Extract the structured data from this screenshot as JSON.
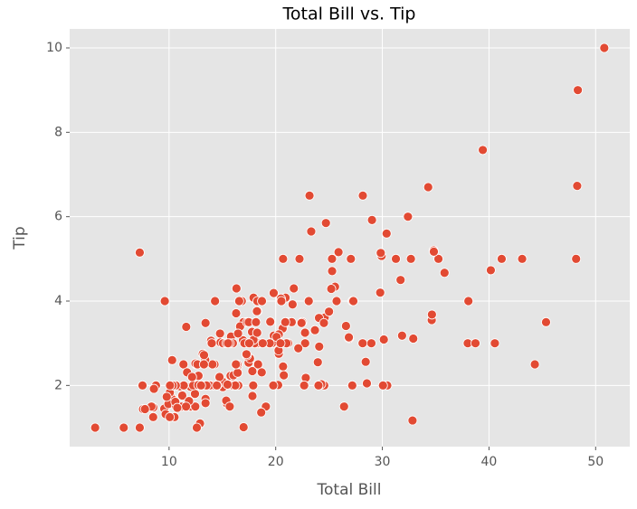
{
  "chart_data": {
    "type": "scatter",
    "title": "Total Bill vs. Tip",
    "x_label": "Total Bill",
    "y_label": "Tip",
    "color": "#E24A33",
    "grid": true,
    "xlim": [
      0.68,
      53.2
    ],
    "ylim": [
      0.55,
      10.45
    ],
    "xticks": [
      10,
      20,
      30,
      40,
      50
    ],
    "yticks": [
      2,
      4,
      6,
      8,
      10
    ],
    "x": [
      16.99,
      10.34,
      21.01,
      23.68,
      24.59,
      25.29,
      8.77,
      26.88,
      15.04,
      14.78,
      10.27,
      35.26,
      15.42,
      18.43,
      14.83,
      21.58,
      10.33,
      16.29,
      16.97,
      20.65,
      17.92,
      20.29,
      15.77,
      39.42,
      19.82,
      17.81,
      13.37,
      12.69,
      21.7,
      19.65,
      9.55,
      18.35,
      15.06,
      20.69,
      17.78,
      24.06,
      16.31,
      16.93,
      18.69,
      31.27,
      16.04,
      17.46,
      13.94,
      9.68,
      30.4,
      18.29,
      22.23,
      32.4,
      28.55,
      18.04,
      12.54,
      10.29,
      34.81,
      9.94,
      25.56,
      19.49,
      38.01,
      26.41,
      11.24,
      48.27,
      20.29,
      13.81,
      11.02,
      18.29,
      17.59,
      20.08,
      16.45,
      3.07,
      20.23,
      15.01,
      12.02,
      17.07,
      26.86,
      25.28,
      14.73,
      10.51,
      17.92,
      27.2,
      22.76,
      17.29,
      19.44,
      16.66,
      10.07,
      32.68,
      15.98,
      34.83,
      13.03,
      18.28,
      24.71,
      21.16,
      28.97,
      22.49,
      5.75,
      16.32,
      22.75,
      40.17,
      27.28,
      12.03,
      21.01,
      12.46,
      11.35,
      15.38,
      44.3,
      22.42,
      20.92,
      15.36,
      20.49,
      25.21,
      18.24,
      14.31,
      14.0,
      7.25,
      38.07,
      23.95,
      25.71,
      17.31,
      29.93,
      10.65,
      12.43,
      24.08,
      11.69,
      13.42,
      14.26,
      15.95,
      12.48,
      29.8,
      8.52,
      14.52,
      11.38,
      22.82,
      19.08,
      20.27,
      11.17,
      12.26,
      18.26,
      8.51,
      10.33,
      14.15,
      16.0,
      13.16,
      17.47,
      34.3,
      41.19,
      27.05,
      16.43,
      8.35,
      18.64,
      11.87,
      9.78,
      7.51,
      14.07,
      13.13,
      17.26,
      24.55,
      19.77,
      29.85,
      48.17,
      25.0,
      13.39,
      16.49,
      21.5,
      12.66,
      16.21,
      13.81,
      17.51,
      24.52,
      20.76,
      31.71,
      10.59,
      10.63,
      50.81,
      15.81,
      7.25,
      31.85,
      16.82,
      32.9,
      17.89,
      14.48,
      9.6,
      34.63,
      34.65,
      23.33,
      45.35,
      23.17,
      40.55,
      20.69,
      20.9,
      30.46,
      18.15,
      23.1,
      15.69,
      19.81,
      28.44,
      15.48,
      16.58,
      7.56,
      10.34,
      43.11,
      13.0,
      13.51,
      18.71,
      12.74,
      13.0,
      16.4,
      20.53,
      16.47,
      26.59,
      38.73,
      24.27,
      12.76,
      30.06,
      25.89,
      48.33,
      13.27,
      28.17,
      12.9,
      28.15,
      11.59,
      7.74,
      30.14,
      12.16,
      13.42,
      8.58,
      15.98,
      13.42,
      16.27,
      10.09,
      20.45,
      13.28,
      22.12,
      24.01,
      15.69,
      11.61,
      10.77,
      15.53,
      10.07,
      12.6,
      32.83,
      35.83,
      29.03,
      27.18,
      22.67,
      17.82,
      18.78
    ],
    "values": [
      1.01,
      1.66,
      3.5,
      3.31,
      3.61,
      4.71,
      2.0,
      3.12,
      1.96,
      3.23,
      1.71,
      5.0,
      1.57,
      3.0,
      3.02,
      3.92,
      1.67,
      3.71,
      3.5,
      3.35,
      4.08,
      2.75,
      2.23,
      7.58,
      3.18,
      2.34,
      2.0,
      2.0,
      4.3,
      3.0,
      1.45,
      2.5,
      3.0,
      2.45,
      3.27,
      3.6,
      2.0,
      3.07,
      2.31,
      5.0,
      2.24,
      2.54,
      3.06,
      1.32,
      5.6,
      3.0,
      5.0,
      6.0,
      2.05,
      3.0,
      2.5,
      2.6,
      5.2,
      1.56,
      4.34,
      3.51,
      3.0,
      1.5,
      1.76,
      6.73,
      3.21,
      2.0,
      1.98,
      3.76,
      2.64,
      3.15,
      2.47,
      1.0,
      2.01,
      2.09,
      1.97,
      3.0,
      3.14,
      5.0,
      2.2,
      1.25,
      3.08,
      4.0,
      3.0,
      2.71,
      3.0,
      3.4,
      1.83,
      5.0,
      2.03,
      5.17,
      2.0,
      4.0,
      5.85,
      3.0,
      3.0,
      3.5,
      1.0,
      4.3,
      3.25,
      4.73,
      4.0,
      1.5,
      3.0,
      1.5,
      2.5,
      3.0,
      2.5,
      3.48,
      4.08,
      1.64,
      4.06,
      4.29,
      3.76,
      4.0,
      3.0,
      1.0,
      4.0,
      2.55,
      4.0,
      3.5,
      5.07,
      1.5,
      1.8,
      2.92,
      2.31,
      1.68,
      2.5,
      2.0,
      2.52,
      4.2,
      1.48,
      2.0,
      2.0,
      2.18,
      1.5,
      2.83,
      1.5,
      2.0,
      3.25,
      1.25,
      2.0,
      2.0,
      2.0,
      2.75,
      3.5,
      6.7,
      5.0,
      5.0,
      2.3,
      1.5,
      1.36,
      1.63,
      1.73,
      2.0,
      2.5,
      2.0,
      2.74,
      2.0,
      2.0,
      5.14,
      5.0,
      3.75,
      2.61,
      2.0,
      3.5,
      2.5,
      2.0,
      2.0,
      3.0,
      3.48,
      2.24,
      4.5,
      1.61,
      2.0,
      10.0,
      3.16,
      5.15,
      3.18,
      4.0,
      3.11,
      2.0,
      2.0,
      4.0,
      3.55,
      3.68,
      5.65,
      3.5,
      6.5,
      3.0,
      5.0,
      3.5,
      2.0,
      3.5,
      4.0,
      1.5,
      4.19,
      2.56,
      2.02,
      4.0,
      1.44,
      2.0,
      5.0,
      2.0,
      2.0,
      4.0,
      2.01,
      2.0,
      2.5,
      4.0,
      3.23,
      3.41,
      3.0,
      2.03,
      2.23,
      2.0,
      5.16,
      9.0,
      2.5,
      6.5,
      1.1,
      3.0,
      1.5,
      1.44,
      3.09,
      2.2,
      3.48,
      1.92,
      3.0,
      1.58,
      2.5,
      2.0,
      3.0,
      2.72,
      2.88,
      2.0,
      3.0,
      3.39,
      1.47,
      3.0,
      1.25,
      1.0,
      1.17,
      4.67,
      5.92,
      2.0,
      2.0,
      1.75,
      3.0
    ]
  }
}
